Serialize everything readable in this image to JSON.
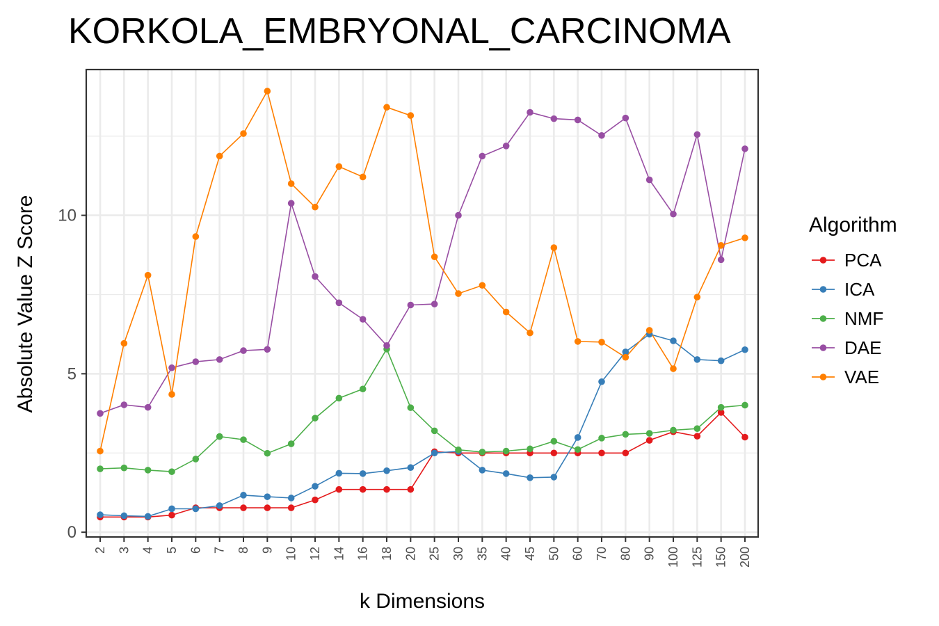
{
  "chart_data": {
    "type": "line",
    "title": "KORKOLA_EMBRYONAL_CARCINOMA",
    "xlabel": "k Dimensions",
    "ylabel": "Absolute Value Z Score",
    "categories": [
      "2",
      "3",
      "4",
      "5",
      "6",
      "7",
      "8",
      "9",
      "10",
      "12",
      "14",
      "16",
      "18",
      "20",
      "25",
      "30",
      "35",
      "40",
      "45",
      "50",
      "60",
      "70",
      "80",
      "90",
      "100",
      "125",
      "150",
      "200"
    ],
    "ylim": [
      -0.15,
      14.6
    ],
    "yticks": [
      0,
      5,
      10
    ],
    "grid": true,
    "legend": {
      "title": "Algorithm",
      "position": "right"
    },
    "series": [
      {
        "name": "PCA",
        "color": "#e41a1c",
        "values": [
          0.48,
          0.48,
          0.48,
          0.54,
          0.77,
          0.77,
          0.77,
          0.77,
          0.77,
          1.02,
          1.35,
          1.35,
          1.35,
          1.35,
          2.54,
          2.5,
          2.5,
          2.5,
          2.5,
          2.5,
          2.5,
          2.5,
          2.5,
          2.9,
          3.17,
          3.03,
          3.78,
          3.0
        ]
      },
      {
        "name": "ICA",
        "color": "#377eb8",
        "values": [
          0.55,
          0.52,
          0.5,
          0.74,
          0.74,
          0.84,
          1.17,
          1.12,
          1.08,
          1.45,
          1.86,
          1.85,
          1.94,
          2.04,
          2.5,
          2.55,
          1.96,
          1.85,
          1.72,
          1.74,
          2.99,
          4.75,
          5.69,
          6.25,
          6.04,
          5.45,
          5.41,
          5.76
        ]
      },
      {
        "name": "NMF",
        "color": "#4daf4a",
        "values": [
          2.0,
          2.03,
          1.96,
          1.91,
          2.31,
          3.02,
          2.92,
          2.49,
          2.79,
          3.6,
          4.23,
          4.52,
          5.78,
          3.93,
          3.2,
          2.6,
          2.53,
          2.56,
          2.63,
          2.87,
          2.61,
          2.97,
          3.09,
          3.12,
          3.22,
          3.27,
          3.94,
          4.01
        ]
      },
      {
        "name": "DAE",
        "color": "#984ea3",
        "values": [
          3.75,
          4.02,
          3.94,
          5.19,
          5.38,
          5.45,
          5.73,
          5.77,
          10.38,
          8.07,
          7.24,
          6.72,
          5.89,
          7.17,
          7.2,
          10.0,
          11.87,
          12.19,
          13.25,
          13.05,
          13.01,
          12.52,
          13.07,
          11.12,
          10.04,
          12.55,
          8.6,
          12.1
        ]
      },
      {
        "name": "VAE",
        "color": "#ff7f00",
        "values": [
          2.56,
          5.96,
          8.11,
          4.35,
          9.33,
          11.87,
          12.58,
          13.92,
          11.0,
          10.26,
          11.54,
          11.21,
          13.41,
          13.15,
          8.69,
          7.53,
          7.79,
          6.95,
          6.29,
          8.98,
          6.02,
          6.0,
          5.52,
          6.37,
          5.16,
          7.42,
          9.05,
          9.29
        ]
      }
    ]
  }
}
